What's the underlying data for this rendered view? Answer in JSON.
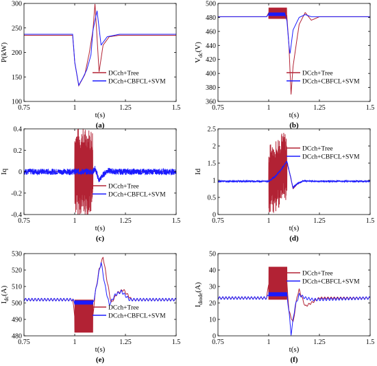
{
  "figure": {
    "legend": [
      "DCch+Tree",
      "DCch+CBFCL+SVM"
    ],
    "colors": {
      "tree": "#b22234",
      "svm": "#1a1aff"
    }
  },
  "chart_data": [
    {
      "id": "a",
      "type": "line",
      "panel_label": "(a)",
      "ylabel": "P(kW)",
      "xlabel": "t(s)",
      "xlim": [
        0.75,
        1.5
      ],
      "ylim": [
        100,
        300
      ],
      "xticks": [
        "0.75",
        "1",
        "1.25",
        "1.5"
      ],
      "yticks": [
        "100",
        "150",
        "200",
        "250",
        "300"
      ],
      "legend_position": "lower-right",
      "series": [
        {
          "name": "DCch+Tree",
          "color": "#b22234",
          "x": [
            0.75,
            0.99,
            1.0,
            1.02,
            1.05,
            1.07,
            1.09,
            1.1,
            1.12,
            1.14,
            1.17,
            1.22,
            1.5
          ],
          "y": [
            235,
            235,
            180,
            132,
            155,
            195,
            245,
            300,
            160,
            215,
            232,
            235,
            235
          ],
          "noise": 0
        },
        {
          "name": "DCch+CBFCL+SVM",
          "color": "#1a1aff",
          "x": [
            0.75,
            0.99,
            1.0,
            1.02,
            1.04,
            1.06,
            1.08,
            1.09,
            1.11,
            1.13,
            1.16,
            1.22,
            1.5
          ],
          "y": [
            237,
            237,
            180,
            133,
            148,
            165,
            195,
            245,
            285,
            215,
            232,
            237,
            237
          ],
          "noise": 0
        }
      ]
    },
    {
      "id": "b",
      "type": "line",
      "panel_label": "(b)",
      "ylabel": "Vdc(V)",
      "ylabel_main": "V",
      "ylabel_sub": "dc",
      "ylabel_unit": "(V)",
      "xlabel": "t(s)",
      "xlim": [
        0.75,
        1.5
      ],
      "ylim": [
        360,
        500
      ],
      "xticks": [
        "0.75",
        "1",
        "1.25",
        "1.5"
      ],
      "yticks": [
        "360",
        "380",
        "400",
        "420",
        "440",
        "460",
        "480",
        "500"
      ],
      "legend_position": "lower-right",
      "series": [
        {
          "name": "DCch+Tree",
          "color": "#b22234",
          "x": [
            0.75,
            0.99,
            1.0,
            1.05,
            1.089,
            1.09,
            1.1,
            1.11,
            1.12,
            1.15,
            1.18,
            1.21,
            1.25,
            1.5
          ],
          "y": [
            481,
            481,
            487,
            487,
            487,
            480,
            440,
            370,
            410,
            470,
            487,
            476,
            481,
            481
          ],
          "band": [
            1.0,
            1.089,
            478,
            494
          ]
        },
        {
          "name": "DCch+CBFCL+SVM",
          "color": "#1a1aff",
          "x": [
            0.75,
            0.99,
            1.0,
            1.08,
            1.09,
            1.1,
            1.105,
            1.12,
            1.15,
            1.18,
            1.21,
            1.5
          ],
          "y": [
            481,
            481,
            485,
            485,
            475,
            440,
            428,
            462,
            480,
            484,
            481,
            481
          ],
          "band": [
            1.0,
            1.08,
            482,
            487
          ]
        }
      ]
    },
    {
      "id": "c",
      "type": "line",
      "panel_label": "(c)",
      "ylabel": "Iq",
      "xlabel": "t(s)",
      "xlim": [
        0.75,
        1.5
      ],
      "ylim": [
        -0.4,
        0.4
      ],
      "xticks": [
        "0.75",
        "1",
        "1.25",
        "1.5"
      ],
      "yticks": [
        "-0.4",
        "-0.2",
        "0",
        "0.2",
        "0.4"
      ],
      "legend_position": "lower-right",
      "series": [
        {
          "name": "DCch+Tree",
          "color": "#b22234",
          "x": [
            0.75,
            0.99,
            1.0,
            1.09,
            1.1,
            1.12,
            1.14,
            1.16,
            1.2,
            1.5
          ],
          "y": [
            0,
            0,
            0,
            0,
            0.02,
            -0.09,
            -0.03,
            0.01,
            0,
            0
          ],
          "envelope": [
            1.0,
            1.09,
            0.38,
            0.03
          ]
        },
        {
          "name": "DCch+CBFCL+SVM",
          "color": "#1a1aff",
          "x": [
            0.75,
            0.99,
            1.0,
            1.09,
            1.1,
            1.12,
            1.14,
            1.16,
            1.2,
            1.5
          ],
          "y": [
            0,
            0,
            0,
            0,
            0.03,
            -0.08,
            -0.03,
            0.01,
            0,
            0
          ],
          "noise": 0.028
        }
      ]
    },
    {
      "id": "d",
      "type": "line",
      "panel_label": "(d)",
      "ylabel": "Id",
      "xlabel": "t(s)",
      "xlim": [
        0.75,
        1.5
      ],
      "ylim": [
        0,
        2.5
      ],
      "xticks": [
        "0.75",
        "1",
        "1.25",
        "1.5"
      ],
      "yticks": [
        "0",
        "0.5",
        "1",
        "1.5",
        "2",
        "2.5"
      ],
      "legend_position": "upper-right",
      "series": [
        {
          "name": "DCch+Tree",
          "color": "#b22234",
          "x": [
            0.75,
            0.99,
            1.0,
            1.03,
            1.06,
            1.09,
            1.1,
            1.12,
            1.14,
            1.17,
            1.22,
            1.5
          ],
          "y": [
            0.97,
            0.97,
            0.97,
            1.1,
            1.3,
            1.5,
            1.3,
            0.75,
            0.88,
            0.98,
            0.97,
            0.97
          ],
          "envelope": [
            1.0,
            1.09,
            1.0,
            0.04
          ]
        },
        {
          "name": "DCch+CBFCL+SVM",
          "color": "#1a1aff",
          "x": [
            0.75,
            0.99,
            1.0,
            1.03,
            1.06,
            1.09,
            1.1,
            1.12,
            1.14,
            1.17,
            1.22,
            1.5
          ],
          "y": [
            0.97,
            0.97,
            0.97,
            1.1,
            1.3,
            1.55,
            1.3,
            0.78,
            0.9,
            0.98,
            0.97,
            0.97
          ],
          "noise": 0.02
        }
      ]
    },
    {
      "id": "e",
      "type": "line",
      "panel_label": "(e)",
      "ylabel": "Idc(A)",
      "ylabel_main": "I",
      "ylabel_sub": "dc",
      "ylabel_unit": "(A)",
      "xlabel": "t(s)",
      "xlim": [
        0.75,
        1.5
      ],
      "ylim": [
        480,
        530
      ],
      "xticks": [
        "0.75",
        "1",
        "1.25",
        "1.5"
      ],
      "yticks": [
        "480",
        "490",
        "500",
        "510",
        "520",
        "530"
      ],
      "legend_position": "lower-right",
      "series": [
        {
          "name": "DCch+Tree",
          "color": "#b22234",
          "x": [
            0.75,
            0.99,
            1.0,
            1.09,
            1.1,
            1.12,
            1.14,
            1.16,
            1.18,
            1.21,
            1.24,
            1.28,
            1.5
          ],
          "y": [
            502,
            502,
            492,
            492,
            505,
            520,
            528,
            513,
            500,
            506,
            508,
            502,
            502
          ],
          "band": [
            1.0,
            1.09,
            482,
            502
          ],
          "ripple": 0.7
        },
        {
          "name": "DCch+CBFCL+SVM",
          "color": "#1a1aff",
          "x": [
            0.75,
            0.99,
            1.0,
            1.09,
            1.1,
            1.12,
            1.13,
            1.15,
            1.17,
            1.2,
            1.23,
            1.27,
            1.5
          ],
          "y": [
            502,
            502,
            500,
            500,
            505,
            519,
            525,
            510,
            499,
            505,
            507,
            502,
            502
          ],
          "band": [
            1.0,
            1.09,
            499,
            501.5
          ],
          "ripple": 0.8
        }
      ]
    },
    {
      "id": "f",
      "type": "line",
      "panel_label": "(f)",
      "ylabel": "Idiode(A)",
      "ylabel_main": "I",
      "ylabel_sub": "diode",
      "ylabel_unit": "(A)",
      "xlabel": "t(s)",
      "xlim": [
        0.75,
        1.5
      ],
      "ylim": [
        0,
        50
      ],
      "xticks": [
        "0.75",
        "1",
        "1.25",
        "1.5"
      ],
      "yticks": [
        "0",
        "10",
        "20",
        "30",
        "40",
        "50"
      ],
      "legend_position": "upper-right",
      "series": [
        {
          "name": "DCch+Tree",
          "color": "#b22234",
          "x": [
            0.75,
            0.99,
            1.0,
            1.09,
            1.1,
            1.12,
            1.14,
            1.15,
            1.18,
            1.21,
            1.25,
            1.5
          ],
          "y": [
            23,
            23,
            32,
            32,
            15,
            8,
            24,
            28,
            18,
            20,
            23,
            23
          ],
          "band": [
            1.0,
            1.09,
            22,
            42
          ],
          "ripple": 0.6
        },
        {
          "name": "DCch+CBFCL+SVM",
          "color": "#1a1aff",
          "x": [
            0.75,
            0.99,
            1.0,
            1.09,
            1.1,
            1.11,
            1.13,
            1.15,
            1.18,
            1.22,
            1.5
          ],
          "y": [
            23,
            23,
            25,
            25,
            15,
            1,
            18,
            25,
            23,
            22,
            23
          ],
          "band": [
            1.0,
            1.09,
            24,
            26.5
          ],
          "ripple": 0.8
        }
      ]
    }
  ]
}
